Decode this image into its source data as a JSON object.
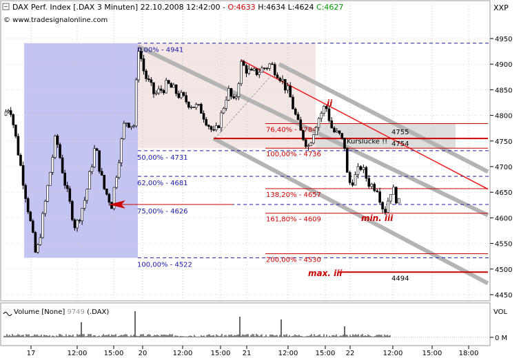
{
  "header": {
    "title_prefix": "DAX Perf. Index [.DAX  3 Minuten] 22.10.2008 12:42:00 - ",
    "open": "O:4633",
    "high": "H:4634",
    "low": "L:4624",
    "close": "C:4627",
    "watermark": "© www.tradesignalonline.com",
    "scale_label": "XXP"
  },
  "colors": {
    "open": "#cc0000",
    "close": "#009900",
    "fib_blue": "#1a1aaa",
    "fib_red": "#cc0000",
    "blue_zone": "#c4c4f2",
    "pink_zone": "#f5e6e6",
    "gray_zone": "#dddddd",
    "channel": "#b4b4b4",
    "trend_red": "#ee2222"
  },
  "chart_data": {
    "type": "candlestick",
    "y_axis": {
      "ticks": [
        4950,
        4900,
        4850,
        4800,
        4750,
        4700,
        4650,
        4600,
        4550,
        4500,
        4450
      ]
    },
    "x_axis": {
      "ticks": [
        "17",
        "12:00",
        "15:00",
        "20",
        "12:00",
        "15:00",
        "21",
        "12:00",
        "15:00",
        "22",
        "12:00",
        "15:00",
        "18:00"
      ]
    },
    "price_path": [
      [
        0,
        4800
      ],
      [
        0.4,
        4820
      ],
      [
        1.0,
        4710
      ],
      [
        1.6,
        4600
      ],
      [
        2.0,
        4522
      ],
      [
        2.4,
        4600
      ],
      [
        3.2,
        4760
      ],
      [
        3.8,
        4660
      ],
      [
        4.4,
        4580
      ],
      [
        5.0,
        4640
      ],
      [
        5.6,
        4740
      ],
      [
        6.1,
        4660
      ],
      [
        6.6,
        4626
      ],
      [
        7.4,
        4790
      ],
      [
        8.0,
        4780
      ],
      [
        8.2,
        4941
      ],
      [
        8.6,
        4880
      ],
      [
        9.2,
        4840
      ],
      [
        10.0,
        4860
      ],
      [
        11.0,
        4830
      ],
      [
        12.0,
        4810
      ],
      [
        12.8,
        4760
      ],
      [
        13.2,
        4800
      ],
      [
        13.6,
        4850
      ],
      [
        14.0,
        4820
      ],
      [
        14.4,
        4900
      ],
      [
        15.0,
        4880
      ],
      [
        15.6,
        4890
      ],
      [
        16.1,
        4900
      ],
      [
        16.6,
        4880
      ],
      [
        17.2,
        4840
      ],
      [
        17.8,
        4770
      ],
      [
        18.3,
        4740
      ],
      [
        18.8,
        4790
      ],
      [
        19.3,
        4820
      ],
      [
        19.7,
        4770
      ],
      [
        20.1,
        4760
      ],
      [
        20.4,
        4740
      ],
      [
        20.6,
        4665
      ],
      [
        21.0,
        4680
      ],
      [
        21.3,
        4700
      ],
      [
        21.8,
        4665
      ],
      [
        22.2,
        4660
      ],
      [
        22.6,
        4610
      ],
      [
        23.0,
        4660
      ],
      [
        23.4,
        4627
      ]
    ],
    "fib_down": [
      {
        "label": "0,00% - 4941",
        "value": 4941
      },
      {
        "label": "50,00% - 4731",
        "value": 4731
      },
      {
        "label": "62,00% - 4681",
        "value": 4681
      },
      {
        "label": "75,00% - 4626",
        "value": 4626
      },
      {
        "label": "100,00% - 4522",
        "value": 4522
      }
    ],
    "fib_ext": [
      {
        "label": "76,40% - 4784",
        "value": 4784
      },
      {
        "label": "100,00% - 4736",
        "value": 4736
      },
      {
        "label": "138,20% - 4657",
        "value": 4657
      },
      {
        "label": "161,80% - 4609",
        "value": 4609
      },
      {
        "label": "200,00% - 4530",
        "value": 4530
      }
    ],
    "gap_levels": [
      {
        "label": "4755",
        "value": 4755
      },
      {
        "label": "4754",
        "value": 4754
      }
    ],
    "max_level": {
      "label": "4494",
      "value": 4494
    },
    "annotations": {
      "wave_ii": "ii",
      "min_iii": "min. iii",
      "max_iii": "max. iii",
      "gap": "Kurslücke !!"
    },
    "volume": {
      "label": "Volume [None]",
      "value": "9749",
      "symbol": "(.DAX)",
      "axis_label": "VOL",
      "ticks": [
        "0 M"
      ]
    }
  }
}
